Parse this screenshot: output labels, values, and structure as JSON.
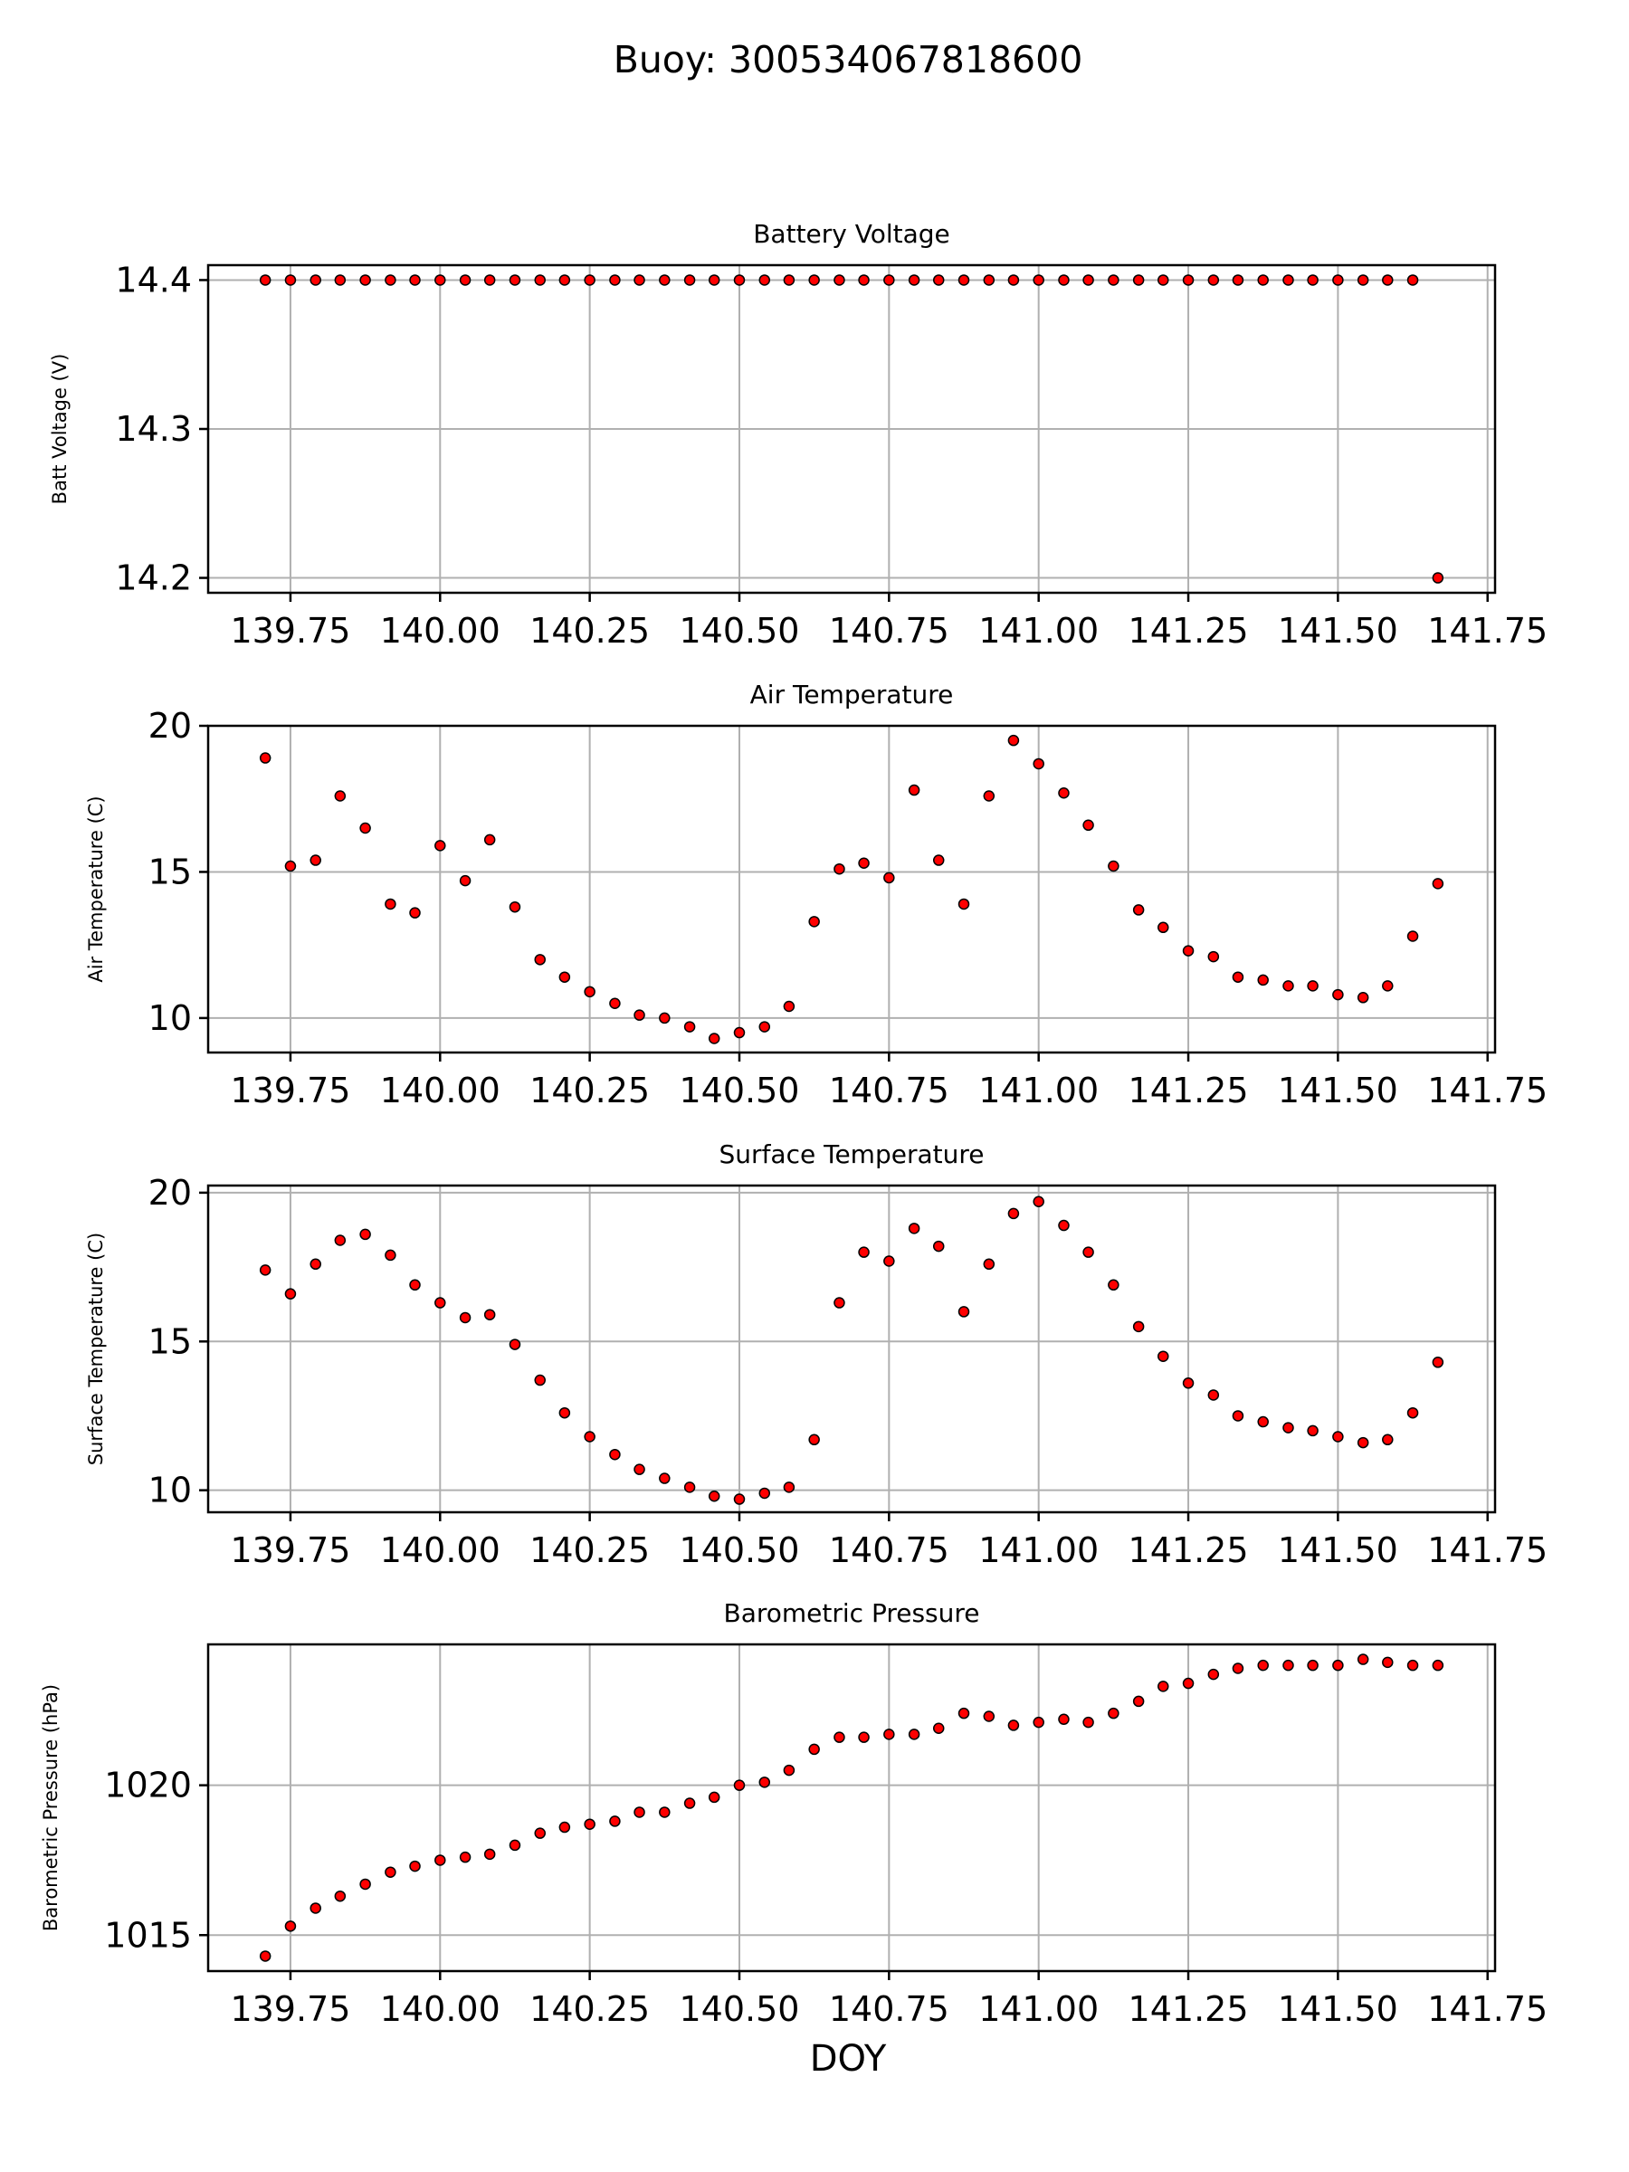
{
  "figure": {
    "title": "Buoy: 300534067818600",
    "xlabel": "DOY"
  },
  "colors": {
    "marker": "#ff0000",
    "edge": "#000000",
    "grid": "#b0b0b0"
  },
  "chart_data": [
    {
      "type": "scatter",
      "title": "Battery Voltage",
      "ylabel": "Batt Voltage (V)",
      "xlim": [
        139.6125,
        141.7625
      ],
      "ylim": [
        14.19,
        14.41
      ],
      "xticks": [
        139.75,
        140.0,
        140.25,
        140.5,
        140.75,
        141.0,
        141.25,
        141.5,
        141.75
      ],
      "xtick_labels": [
        "139.75",
        "140.00",
        "140.25",
        "140.50",
        "140.75",
        "141.00",
        "141.25",
        "141.50",
        "141.75"
      ],
      "yticks": [
        14.2,
        14.3,
        14.4
      ],
      "ytick_labels": [
        "14.2",
        "14.3",
        "14.4"
      ],
      "grid": true,
      "x": [
        139.708,
        139.75,
        139.792,
        139.833,
        139.875,
        139.917,
        139.958,
        140.0,
        140.042,
        140.083,
        140.125,
        140.167,
        140.208,
        140.25,
        140.292,
        140.333,
        140.375,
        140.417,
        140.458,
        140.5,
        140.542,
        140.583,
        140.625,
        140.667,
        140.708,
        140.75,
        140.792,
        140.833,
        140.875,
        140.917,
        140.958,
        141.0,
        141.042,
        141.083,
        141.125,
        141.167,
        141.208,
        141.25,
        141.292,
        141.333,
        141.375,
        141.417,
        141.458,
        141.5,
        141.542,
        141.583,
        141.625,
        141.667
      ],
      "y": [
        14.4,
        14.4,
        14.4,
        14.4,
        14.4,
        14.4,
        14.4,
        14.4,
        14.4,
        14.4,
        14.4,
        14.4,
        14.4,
        14.4,
        14.4,
        14.4,
        14.4,
        14.4,
        14.4,
        14.4,
        14.4,
        14.4,
        14.4,
        14.4,
        14.4,
        14.4,
        14.4,
        14.4,
        14.4,
        14.4,
        14.4,
        14.4,
        14.4,
        14.4,
        14.4,
        14.4,
        14.4,
        14.4,
        14.4,
        14.4,
        14.4,
        14.4,
        14.4,
        14.4,
        14.4,
        14.4,
        14.4,
        14.2
      ]
    },
    {
      "type": "scatter",
      "title": "Air Temperature",
      "ylabel": "Air Temperature (C)",
      "xlim": [
        139.6125,
        141.7625
      ],
      "ylim": [
        8.82,
        20.0
      ],
      "xticks": [
        139.75,
        140.0,
        140.25,
        140.5,
        140.75,
        141.0,
        141.25,
        141.5,
        141.75
      ],
      "xtick_labels": [
        "139.75",
        "140.00",
        "140.25",
        "140.50",
        "140.75",
        "141.00",
        "141.25",
        "141.50",
        "141.75"
      ],
      "yticks": [
        10,
        15,
        20
      ],
      "ytick_labels": [
        "10",
        "15",
        "20"
      ],
      "grid": true,
      "x": [
        139.708,
        139.75,
        139.792,
        139.833,
        139.875,
        139.917,
        139.958,
        140.0,
        140.042,
        140.083,
        140.125,
        140.167,
        140.208,
        140.25,
        140.292,
        140.333,
        140.375,
        140.417,
        140.458,
        140.5,
        140.542,
        140.583,
        140.625,
        140.667,
        140.708,
        140.75,
        140.792,
        140.833,
        140.875,
        140.917,
        140.958,
        141.0,
        141.042,
        141.083,
        141.125,
        141.167,
        141.208,
        141.25,
        141.292,
        141.333,
        141.375,
        141.417,
        141.458,
        141.5,
        141.542,
        141.583,
        141.625,
        141.667
      ],
      "y": [
        18.9,
        15.2,
        15.4,
        17.6,
        16.5,
        13.9,
        13.6,
        15.9,
        14.7,
        16.1,
        13.8,
        12.0,
        11.4,
        10.9,
        10.5,
        10.1,
        10.0,
        9.7,
        9.3,
        9.5,
        9.7,
        10.4,
        13.3,
        15.1,
        15.3,
        14.8,
        17.8,
        15.4,
        13.9,
        17.6,
        19.5,
        18.7,
        17.7,
        16.6,
        15.2,
        13.7,
        13.1,
        12.3,
        12.1,
        11.4,
        11.3,
        11.1,
        11.1,
        10.8,
        10.7,
        11.1,
        12.8,
        14.6
      ]
    },
    {
      "type": "scatter",
      "title": "Surface Temperature",
      "ylabel": "Surface Temperature (C)",
      "xlim": [
        139.6125,
        141.7625
      ],
      "ylim": [
        9.26,
        20.24
      ],
      "xticks": [
        139.75,
        140.0,
        140.25,
        140.5,
        140.75,
        141.0,
        141.25,
        141.5,
        141.75
      ],
      "xtick_labels": [
        "139.75",
        "140.00",
        "140.25",
        "140.50",
        "140.75",
        "141.00",
        "141.25",
        "141.50",
        "141.75"
      ],
      "yticks": [
        10,
        15,
        20
      ],
      "ytick_labels": [
        "10",
        "15",
        "20"
      ],
      "grid": true,
      "x": [
        139.708,
        139.75,
        139.792,
        139.833,
        139.875,
        139.917,
        139.958,
        140.0,
        140.042,
        140.083,
        140.125,
        140.167,
        140.208,
        140.25,
        140.292,
        140.333,
        140.375,
        140.417,
        140.458,
        140.5,
        140.542,
        140.583,
        140.625,
        140.667,
        140.708,
        140.75,
        140.792,
        140.833,
        140.875,
        140.917,
        140.958,
        141.0,
        141.042,
        141.083,
        141.125,
        141.167,
        141.208,
        141.25,
        141.292,
        141.333,
        141.375,
        141.417,
        141.458,
        141.5,
        141.542,
        141.583,
        141.625,
        141.667
      ],
      "y": [
        17.4,
        16.6,
        17.6,
        18.4,
        18.6,
        17.9,
        16.9,
        16.3,
        15.8,
        15.9,
        14.9,
        13.7,
        12.6,
        11.8,
        11.2,
        10.7,
        10.4,
        10.1,
        9.8,
        9.7,
        9.9,
        10.1,
        11.7,
        16.3,
        18.0,
        17.7,
        18.8,
        18.2,
        16.0,
        17.6,
        19.3,
        19.7,
        18.9,
        18.0,
        16.9,
        15.5,
        14.5,
        13.6,
        13.2,
        12.5,
        12.3,
        12.1,
        12.0,
        11.8,
        11.6,
        11.7,
        12.6,
        14.3
      ]
    },
    {
      "type": "scatter",
      "title": "Barometric Pressure",
      "ylabel": "Barometric Pressure (hPa)",
      "xlim": [
        139.6125,
        141.7625
      ],
      "ylim": [
        1013.8,
        1024.7
      ],
      "xticks": [
        139.75,
        140.0,
        140.25,
        140.5,
        140.75,
        141.0,
        141.25,
        141.5,
        141.75
      ],
      "xtick_labels": [
        "139.75",
        "140.00",
        "140.25",
        "140.50",
        "140.75",
        "141.00",
        "141.25",
        "141.50",
        "141.75"
      ],
      "yticks": [
        1015,
        1020
      ],
      "ytick_labels": [
        "1015",
        "1020"
      ],
      "grid": true,
      "x": [
        139.708,
        139.75,
        139.792,
        139.833,
        139.875,
        139.917,
        139.958,
        140.0,
        140.042,
        140.083,
        140.125,
        140.167,
        140.208,
        140.25,
        140.292,
        140.333,
        140.375,
        140.417,
        140.458,
        140.5,
        140.542,
        140.583,
        140.625,
        140.667,
        140.708,
        140.75,
        140.792,
        140.833,
        140.875,
        140.917,
        140.958,
        141.0,
        141.042,
        141.083,
        141.125,
        141.167,
        141.208,
        141.25,
        141.292,
        141.333,
        141.375,
        141.417,
        141.458,
        141.5,
        141.542,
        141.583,
        141.625,
        141.667
      ],
      "y": [
        1014.3,
        1015.3,
        1015.9,
        1016.3,
        1016.7,
        1017.1,
        1017.3,
        1017.5,
        1017.6,
        1017.7,
        1018.0,
        1018.4,
        1018.6,
        1018.7,
        1018.8,
        1019.1,
        1019.1,
        1019.4,
        1019.6,
        1020.0,
        1020.1,
        1020.5,
        1021.2,
        1021.6,
        1021.6,
        1021.7,
        1021.7,
        1021.9,
        1022.4,
        1022.3,
        1022.0,
        1022.1,
        1022.2,
        1022.1,
        1022.4,
        1022.8,
        1023.3,
        1023.4,
        1023.7,
        1023.9,
        1024.0,
        1024.0,
        1024.0,
        1024.0,
        1024.2,
        1024.1,
        1024.0,
        1024.0
      ]
    }
  ]
}
